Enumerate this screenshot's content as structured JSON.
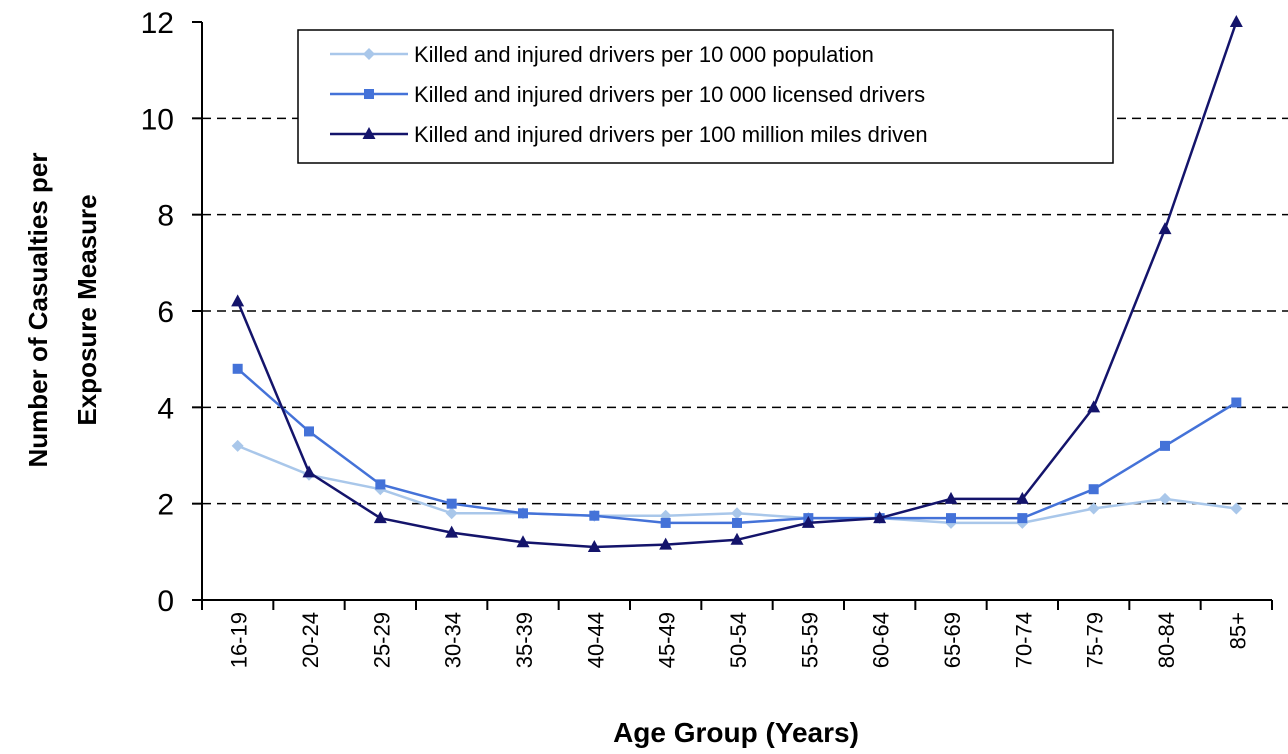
{
  "chart_data": {
    "type": "line",
    "title": "",
    "xlabel": "Age Group (Years)",
    "ylabel": [
      "Number of Casualties per",
      "Exposure Measure"
    ],
    "ylim": [
      0,
      12
    ],
    "yticks": [
      0,
      2,
      4,
      6,
      8,
      10,
      12
    ],
    "grid": "horizontal dashed at 2, 4, 6, 8, 10",
    "legend_position": "top-center",
    "categories": [
      "16-19",
      "20-24",
      "25-29",
      "30-34",
      "35-39",
      "40-44",
      "45-49",
      "50-54",
      "55-59",
      "60-64",
      "65-69",
      "70-74",
      "75-79",
      "80-84",
      "85+"
    ],
    "series": [
      {
        "name": "Killed and injured drivers per 10 000 population",
        "marker": "diamond",
        "color": "#a9c7ea",
        "values": [
          3.2,
          2.6,
          2.3,
          1.8,
          1.8,
          1.75,
          1.75,
          1.8,
          1.7,
          1.7,
          1.6,
          1.6,
          1.9,
          2.1,
          1.9
        ]
      },
      {
        "name": "Killed and injured drivers per 10 000 licensed drivers",
        "marker": "square",
        "color": "#4472d8",
        "values": [
          4.8,
          3.5,
          2.4,
          2.0,
          1.8,
          1.75,
          1.6,
          1.6,
          1.7,
          1.7,
          1.7,
          1.7,
          2.3,
          3.2,
          4.1
        ]
      },
      {
        "name": "Killed and injured drivers per 100 million miles driven",
        "marker": "triangle",
        "color": "#14146b",
        "values": [
          6.2,
          2.65,
          1.7,
          1.4,
          1.2,
          1.1,
          1.15,
          1.25,
          1.6,
          1.7,
          2.1,
          2.1,
          4.0,
          7.7,
          12.0
        ]
      }
    ]
  }
}
